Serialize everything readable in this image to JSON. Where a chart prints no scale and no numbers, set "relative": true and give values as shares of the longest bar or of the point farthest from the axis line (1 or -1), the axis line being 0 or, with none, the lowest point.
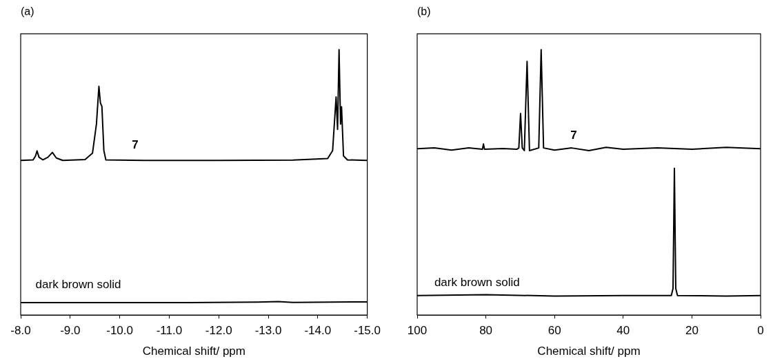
{
  "chart_data": [
    {
      "type": "line",
      "title": "(a)",
      "xlabel": "Chemical shift/ ppm",
      "relative": true,
      "xlim": [
        -8.0,
        -15.0
      ],
      "xticks": [
        {
          "value": -8,
          "label": "-8.0"
        },
        {
          "value": -9,
          "label": "-9.0"
        },
        {
          "value": -10,
          "label": "-10.0"
        },
        {
          "value": -11,
          "label": "-11.0"
        },
        {
          "value": -12,
          "label": "-12.0"
        },
        {
          "value": -13,
          "label": "-13.0"
        },
        {
          "value": -14,
          "label": "-14.0"
        },
        {
          "value": -15,
          "label": "-15.0"
        }
      ],
      "series": [
        {
          "name": "7",
          "color": "#000000",
          "x": [
            -8.0,
            -8.25,
            -8.3,
            -8.33,
            -8.37,
            -8.45,
            -8.55,
            -8.64,
            -8.72,
            -8.85,
            -9.3,
            -9.45,
            -9.53,
            -9.58,
            -9.61,
            -9.64,
            -9.68,
            -9.72,
            -10.5,
            -12.0,
            -13.5,
            -14.2,
            -14.3,
            -14.37,
            -14.4,
            -14.43,
            -14.46,
            -14.48,
            -14.52,
            -14.6,
            -15.0
          ],
          "values": [
            0.583,
            0.585,
            0.6,
            0.619,
            0.595,
            0.585,
            0.595,
            0.613,
            0.592,
            0.583,
            0.586,
            0.61,
            0.72,
            0.862,
            0.8,
            0.787,
            0.62,
            0.585,
            0.583,
            0.583,
            0.584,
            0.59,
            0.62,
            0.822,
            0.7,
            1.0,
            0.72,
            0.785,
            0.6,
            0.585,
            0.583
          ]
        },
        {
          "name": "dark brown solid",
          "color": "#000000",
          "x": [
            -8.0,
            -11.4,
            -12.8,
            -13.2,
            -13.5,
            -15.0
          ],
          "values": [
            0.047,
            0.047,
            0.049,
            0.051,
            0.048,
            0.05
          ]
        }
      ],
      "marker": "none"
    },
    {
      "type": "line",
      "title": "(b)",
      "xlabel": "Chemical shift/ ppm",
      "relative": true,
      "xlim": [
        100,
        0
      ],
      "xticks": [
        100,
        80,
        60,
        40,
        20,
        0
      ],
      "series": [
        {
          "name": "7",
          "color": "#000000",
          "x": [
            100,
            95,
            90,
            85,
            81,
            80.7,
            80.4,
            75,
            71,
            70.4,
            69.9,
            69.4,
            68.8,
            68.0,
            67.3,
            64.6,
            63.9,
            63.2,
            60,
            55,
            50,
            45,
            40,
            30,
            20,
            10,
            0
          ],
          "values": [
            0.627,
            0.63,
            0.622,
            0.63,
            0.625,
            0.645,
            0.625,
            0.628,
            0.625,
            0.63,
            0.76,
            0.63,
            0.62,
            0.956,
            0.62,
            0.63,
            1.0,
            0.63,
            0.622,
            0.63,
            0.62,
            0.632,
            0.625,
            0.63,
            0.625,
            0.632,
            0.627
          ]
        },
        {
          "name": "dark brown solid",
          "color": "#000000",
          "x": [
            100,
            80,
            60,
            40,
            26,
            25.5,
            25.1,
            24.7,
            24.2,
            10,
            0
          ],
          "values": [
            0.074,
            0.077,
            0.072,
            0.074,
            0.074,
            0.1,
            0.553,
            0.1,
            0.074,
            0.072,
            0.074
          ]
        }
      ],
      "marker": "none"
    }
  ]
}
